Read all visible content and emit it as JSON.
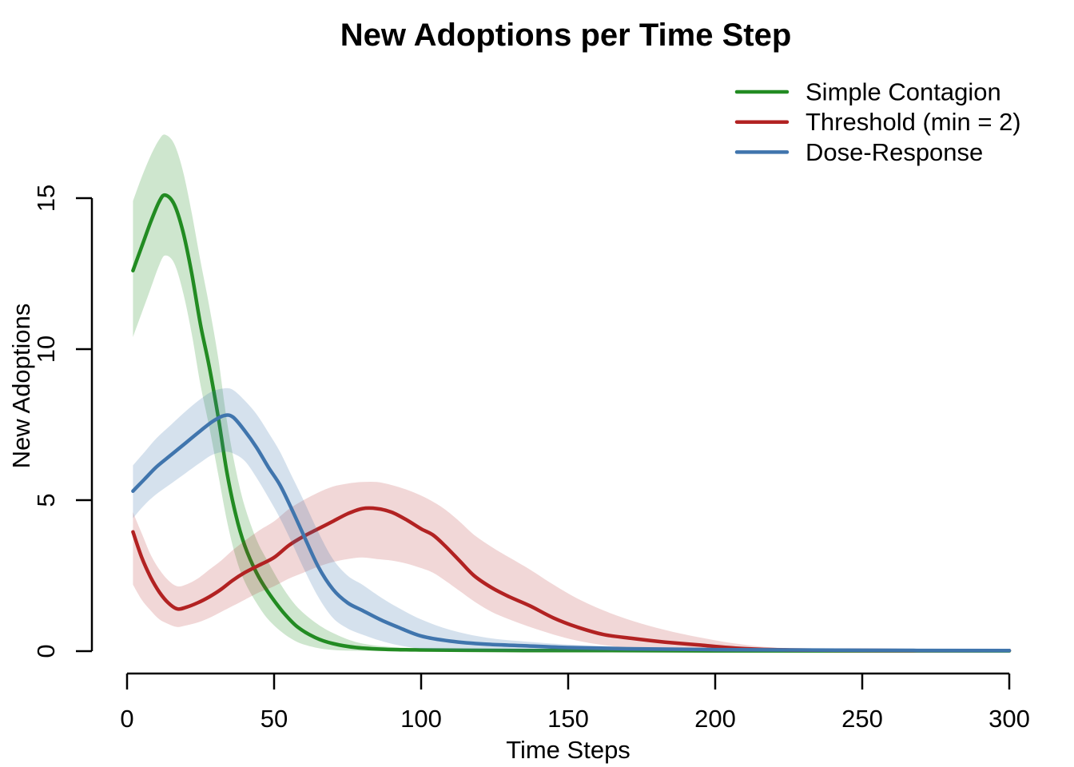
{
  "page": {
    "background": "#ffffff",
    "text_color": "#000000"
  },
  "chart_data": {
    "type": "line",
    "title": "New Adoptions per Time Step",
    "xlabel": "Time Steps",
    "ylabel": "New Adoptions",
    "xlim": [
      0,
      300
    ],
    "ylim": [
      0,
      15
    ],
    "x_ticks": [
      0,
      50,
      100,
      150,
      200,
      250,
      300
    ],
    "y_ticks": [
      0,
      5,
      10,
      15
    ],
    "grid": false,
    "legend_position": "top-right",
    "legend_box": false,
    "band_style": "shaded confidence ribbon per series",
    "series": [
      {
        "name": "Simple Contagion",
        "color": "#228B22",
        "band_opacity": 0.22,
        "t": [
          2,
          5,
          8,
          11,
          13,
          16,
          19,
          22,
          25,
          28,
          31,
          34,
          37,
          40,
          44,
          48,
          53,
          58,
          64,
          70,
          78,
          88,
          100,
          115,
          135,
          160,
          200,
          250,
          300
        ],
        "mean": [
          12.6,
          13.4,
          14.2,
          14.9,
          15.1,
          14.8,
          13.9,
          12.5,
          10.8,
          9.4,
          7.75,
          5.9,
          4.5,
          3.5,
          2.6,
          1.95,
          1.3,
          0.8,
          0.45,
          0.25,
          0.12,
          0.06,
          0.04,
          0.03,
          0.02,
          0.02,
          0.01,
          0.01,
          0.01
        ],
        "upper": [
          14.9,
          15.7,
          16.4,
          16.95,
          17.1,
          16.8,
          15.9,
          14.5,
          12.9,
          11.4,
          9.7,
          7.6,
          6.0,
          4.8,
          3.7,
          2.95,
          2.1,
          1.45,
          0.95,
          0.6,
          0.3,
          0.15,
          0.09,
          0.06,
          0.05,
          0.04,
          0.03,
          0.02,
          0.02
        ],
        "lower": [
          10.4,
          11.2,
          12.0,
          12.8,
          13.1,
          12.85,
          11.9,
          10.5,
          8.8,
          7.4,
          5.85,
          4.3,
          3.1,
          2.3,
          1.6,
          1.05,
          0.6,
          0.3,
          0.12,
          0.04,
          0.01,
          0,
          0,
          0,
          0,
          0,
          0,
          0,
          0
        ]
      },
      {
        "name": "Threshold (min = 2)",
        "color": "#B22222",
        "band_opacity": 0.18,
        "t": [
          2,
          5,
          8,
          11,
          14,
          17,
          20,
          24,
          28,
          32,
          36,
          40,
          45,
          50,
          55,
          60,
          65,
          70,
          75,
          80,
          85,
          90,
          95,
          100,
          104,
          108,
          113,
          118,
          124,
          130,
          137,
          145,
          153,
          162,
          172,
          183,
          195,
          207,
          220,
          240,
          265,
          300
        ],
        "mean": [
          3.95,
          3.1,
          2.45,
          1.95,
          1.6,
          1.4,
          1.45,
          1.6,
          1.8,
          2.05,
          2.35,
          2.6,
          2.85,
          3.1,
          3.5,
          3.8,
          4.05,
          4.3,
          4.55,
          4.72,
          4.72,
          4.6,
          4.35,
          4.05,
          3.85,
          3.5,
          3.0,
          2.5,
          2.1,
          1.8,
          1.5,
          1.1,
          0.8,
          0.55,
          0.42,
          0.3,
          0.2,
          0.1,
          0.05,
          0.03,
          0.02,
          0.02
        ],
        "upper": [
          4.6,
          3.9,
          3.2,
          2.7,
          2.35,
          2.15,
          2.2,
          2.4,
          2.7,
          3.0,
          3.35,
          3.65,
          4.0,
          4.3,
          4.7,
          5.0,
          5.25,
          5.45,
          5.55,
          5.6,
          5.6,
          5.5,
          5.35,
          5.15,
          4.95,
          4.7,
          4.3,
          3.85,
          3.45,
          3.1,
          2.7,
          2.2,
          1.75,
          1.35,
          1.0,
          0.7,
          0.45,
          0.25,
          0.12,
          0.06,
          0.04,
          0.03
        ],
        "lower": [
          2.2,
          1.7,
          1.35,
          1.05,
          0.9,
          0.8,
          0.85,
          0.95,
          1.1,
          1.3,
          1.5,
          1.7,
          1.95,
          2.15,
          2.4,
          2.6,
          2.8,
          2.95,
          3.05,
          3.1,
          3.05,
          3.0,
          2.9,
          2.75,
          2.6,
          2.35,
          2.0,
          1.65,
          1.3,
          1.05,
          0.8,
          0.55,
          0.35,
          0.2,
          0.1,
          0.05,
          0.02,
          0.01,
          0,
          0,
          0,
          0
        ]
      },
      {
        "name": "Dose-Response",
        "color": "#4075AD",
        "band_opacity": 0.22,
        "t": [
          2,
          6,
          10,
          15,
          20,
          25,
          29,
          33,
          36,
          40,
          44,
          48,
          52,
          56,
          60,
          65,
          70,
          75,
          80,
          86,
          92,
          100,
          110,
          122,
          135,
          150,
          170,
          200,
          250,
          300
        ],
        "mean": [
          5.3,
          5.7,
          6.1,
          6.5,
          6.9,
          7.3,
          7.6,
          7.8,
          7.75,
          7.3,
          6.75,
          6.1,
          5.5,
          4.7,
          3.85,
          2.8,
          2.05,
          1.6,
          1.35,
          1.05,
          0.8,
          0.5,
          0.33,
          0.23,
          0.18,
          0.12,
          0.08,
          0.05,
          0.03,
          0.02
        ],
        "upper": [
          6.15,
          6.6,
          7.05,
          7.5,
          7.95,
          8.35,
          8.6,
          8.7,
          8.65,
          8.3,
          7.85,
          7.25,
          6.6,
          5.8,
          5.0,
          3.95,
          3.05,
          2.5,
          2.2,
          1.8,
          1.45,
          1.05,
          0.7,
          0.45,
          0.32,
          0.22,
          0.14,
          0.08,
          0.05,
          0.04
        ],
        "lower": [
          4.4,
          4.85,
          5.2,
          5.55,
          5.9,
          6.25,
          6.5,
          6.6,
          6.55,
          6.3,
          5.75,
          5.1,
          4.4,
          3.6,
          2.75,
          1.8,
          1.1,
          0.75,
          0.55,
          0.35,
          0.2,
          0.08,
          0.03,
          0.01,
          0,
          0,
          0,
          0,
          0,
          0
        ]
      }
    ]
  }
}
